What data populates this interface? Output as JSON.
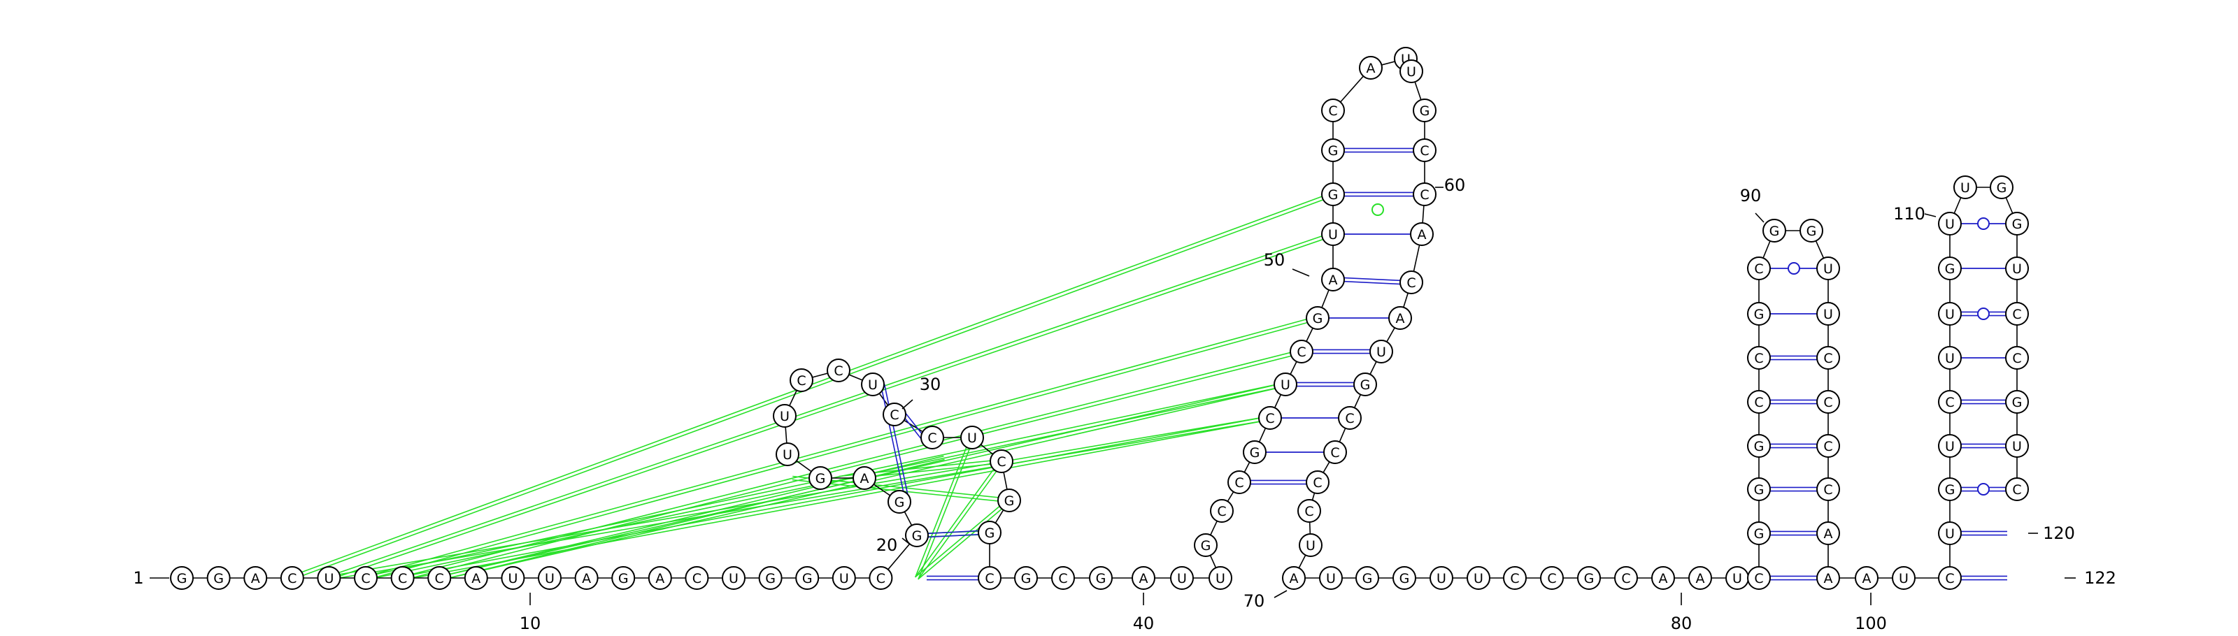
{
  "sequence": [
    "G",
    "G",
    "A",
    "C",
    "U",
    "C",
    "C",
    "C",
    "A",
    "U",
    "U",
    "A",
    "G",
    "A",
    "C",
    "U",
    "G",
    "G",
    "U",
    "C",
    "G",
    "G",
    "A",
    "G",
    "U",
    "U",
    "C",
    "C",
    "U",
    "C",
    "C",
    "U",
    "C",
    "G",
    "G",
    "C",
    "G",
    "C",
    "G",
    "A",
    "U",
    "U",
    "G",
    "C",
    "C",
    "G",
    "C",
    "U",
    "C",
    "G",
    "A",
    "U",
    "G",
    "G",
    "C",
    "A",
    "U",
    "U",
    "G",
    "C",
    "C",
    "A",
    "C",
    "A",
    "U",
    "G",
    "C",
    "C",
    "C",
    "C",
    "U",
    "A",
    "U",
    "G",
    "G",
    "U",
    "U",
    "C",
    "C",
    "G",
    "C",
    "A",
    "A",
    "U",
    "C",
    "G",
    "G",
    "G",
    "C",
    "C",
    "G",
    "C",
    "G",
    "G",
    "U",
    "U",
    "C",
    "C",
    "C",
    "C",
    "A",
    "A",
    "A",
    "U",
    "C",
    "U",
    "G",
    "U",
    "C",
    "U",
    "U",
    "G",
    "U",
    "U",
    "G",
    "G",
    "U",
    "C",
    "C",
    "G",
    "U",
    "C"
  ],
  "position_labels": [
    "1",
    "10",
    "20",
    "30",
    "40",
    "50",
    "60",
    "70",
    "80",
    "90",
    "100",
    "110",
    "120",
    "122"
  ],
  "colors": {
    "canonical_pair": "#1e1ec8",
    "noncanonical_pair": "#1e1ec8",
    "tertiary_interaction": "#28e028",
    "backbone": "#000000",
    "nucleotide_fill": "#ffffff"
  }
}
